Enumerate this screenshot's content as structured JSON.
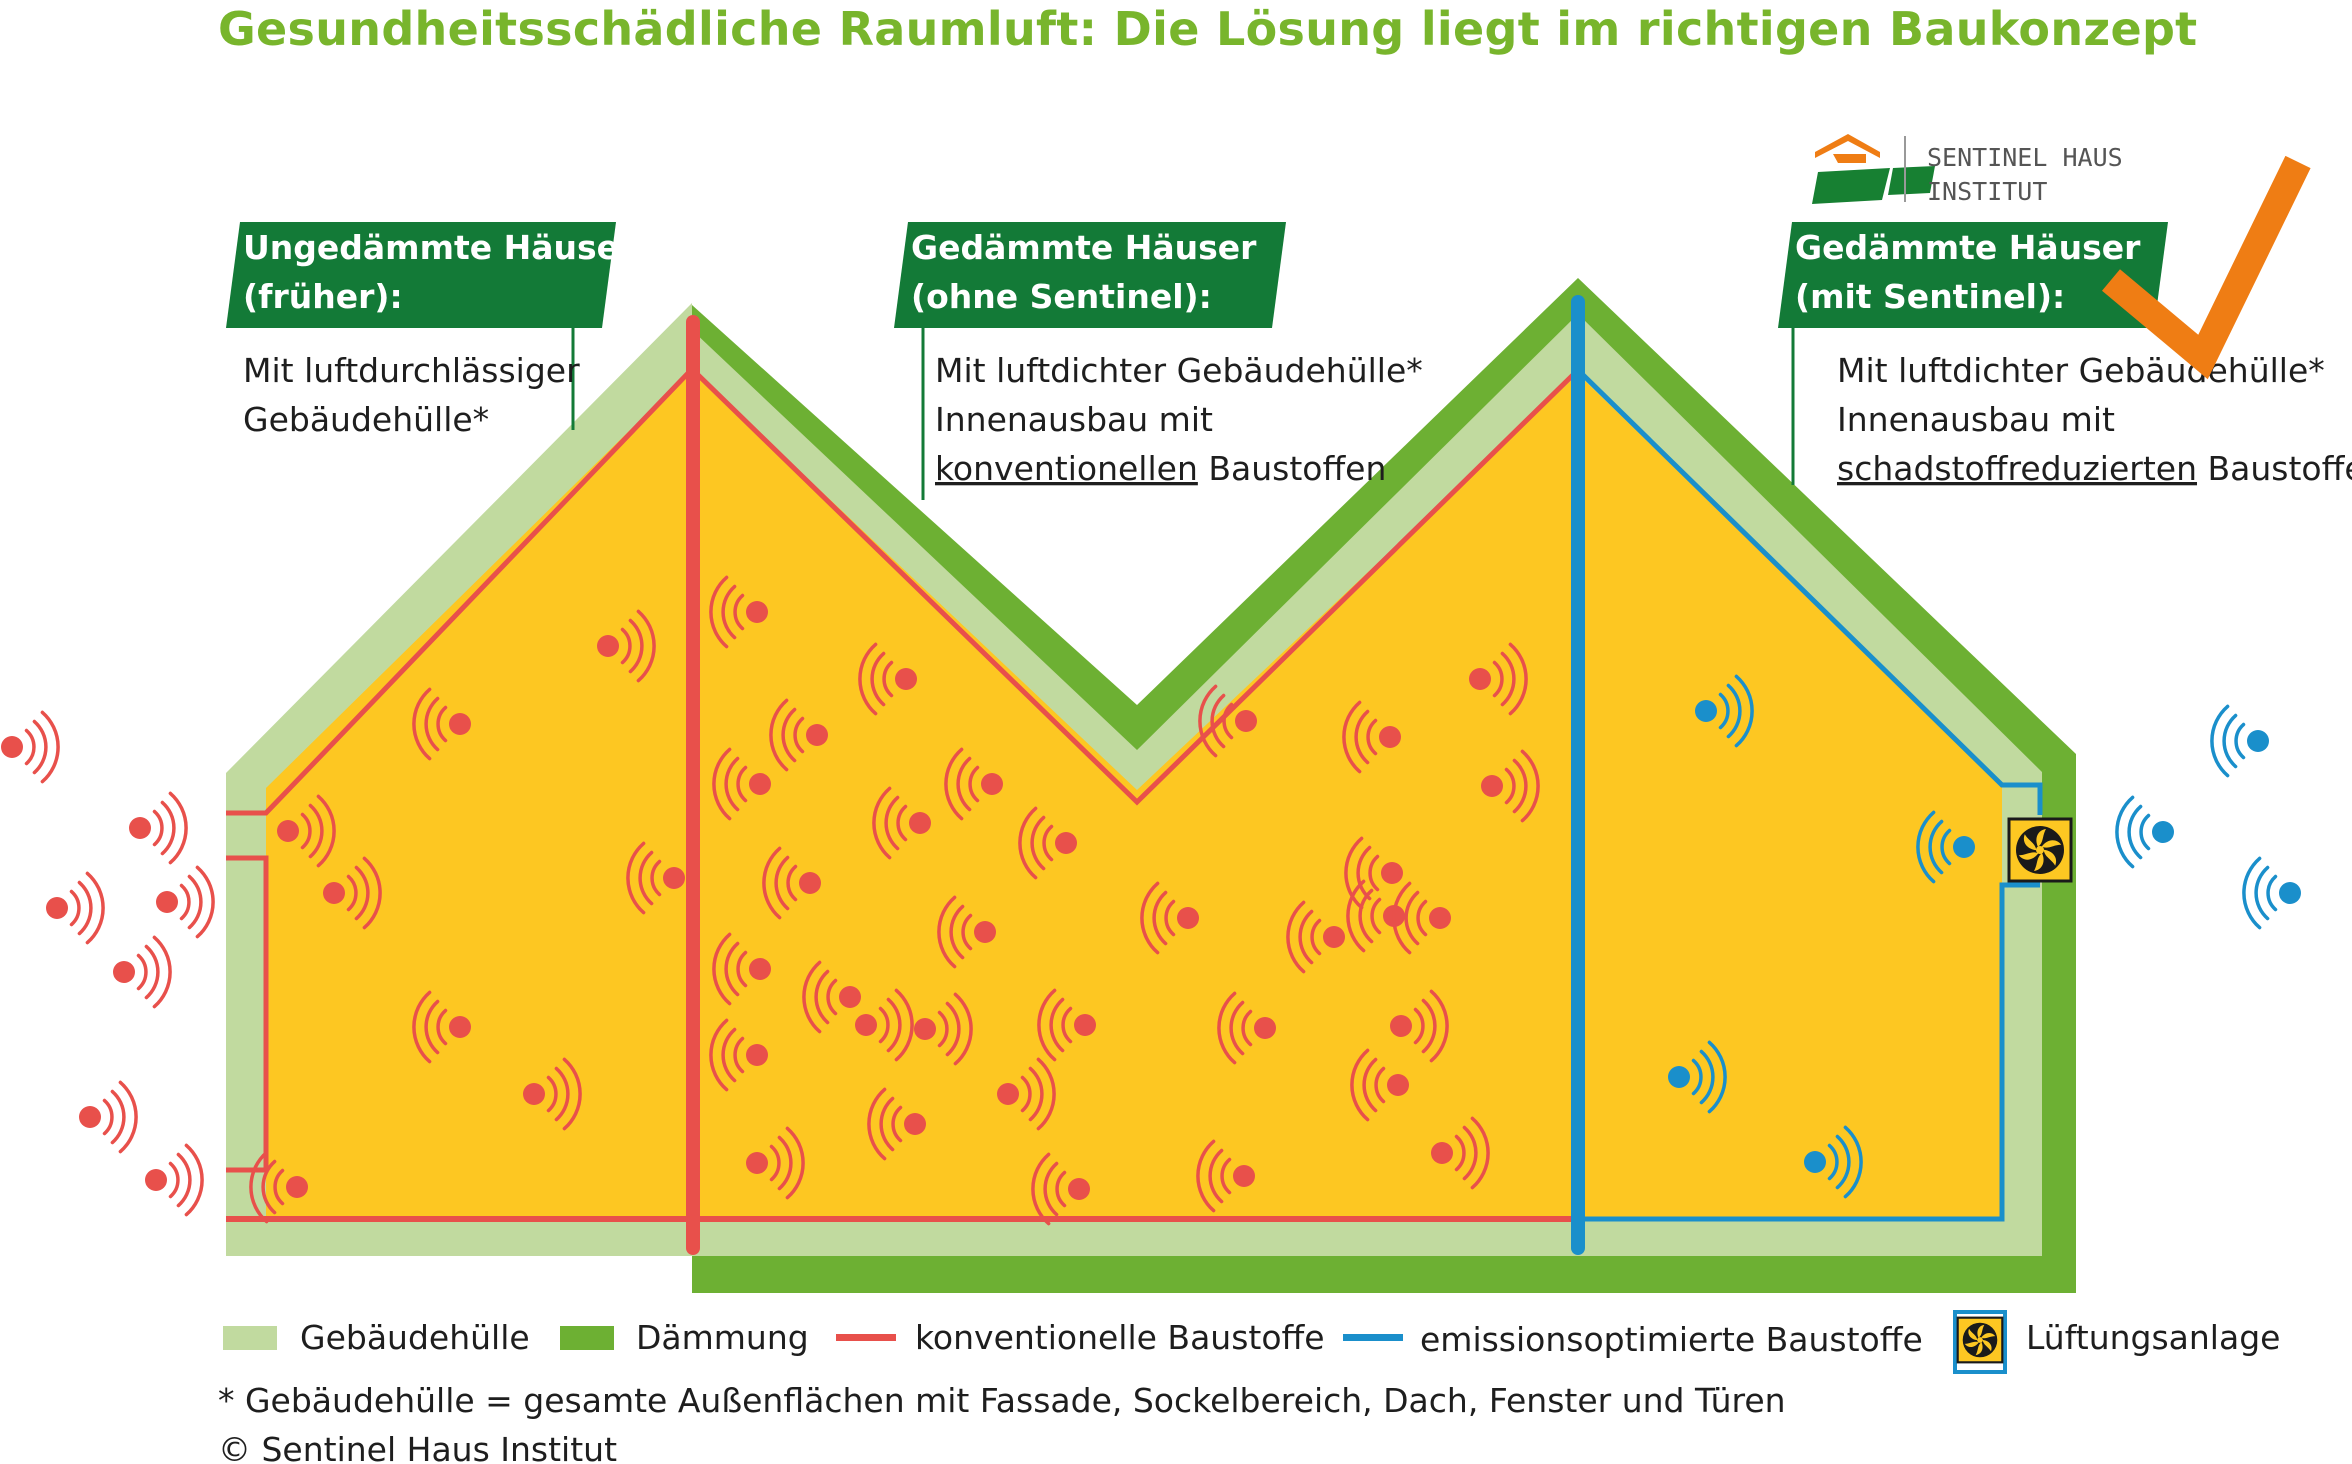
{
  "title": "Gesundheitsschädliche Raumluft: Die Lösung liegt im richtigen Baukonzept",
  "logo": {
    "line1": "SENTINEL HAUS",
    "line2": "INSTITUT"
  },
  "houses": [
    {
      "heading": [
        "Ungedämmte Häuser",
        "(früher):"
      ],
      "description": [
        [
          [
            "Mit luftdurchlässiger",
            false
          ]
        ],
        [
          [
            "Gebäudehülle*",
            false
          ]
        ]
      ]
    },
    {
      "heading": [
        "Gedämmte Häuser",
        "(ohne Sentinel):"
      ],
      "description": [
        [
          [
            "Mit luftdichter Gebäudehülle*",
            false
          ]
        ],
        [
          [
            "Innenausbau mit",
            false
          ]
        ],
        [
          [
            "konventionellen",
            true
          ],
          [
            " Baustoffen",
            false
          ]
        ]
      ]
    },
    {
      "heading": [
        "Gedämmte Häuser",
        "(mit Sentinel):"
      ],
      "description": [
        [
          [
            "Mit luftdichter Gebäudehülle*",
            false
          ]
        ],
        [
          [
            "Innenausbau mit",
            false
          ]
        ],
        [
          [
            "schadstoffreduzierten",
            true
          ],
          [
            " Baustoffen",
            false
          ]
        ]
      ]
    }
  ],
  "legend": {
    "envelope": "Gebäudehülle",
    "insulation": "Dämmung",
    "conventional": "konventionelle Baustoffe",
    "emission_optimized": "emissionsoptimierte Baustoffe",
    "ventilation": "Lüftungsanlage"
  },
  "footnote": "* Gebäudehülle = gesamte Außenflächen mit Fassade, Sockelbereich, Dach, Fenster und Türen",
  "copyright": "© Sentinel Haus Institut",
  "colors": {
    "title_green": "#78b52c",
    "label_green": "#137a37",
    "envelope": "#c1da9f",
    "insulation": "#6db033",
    "interior": "#fdc722",
    "conventional": "#e8504b",
    "emission_optimized": "#1a8fcb",
    "checkmark": "#ef7d14"
  },
  "icons": [
    "emission-wave-icon",
    "ventilation-fan-icon",
    "checkmark-icon",
    "sentinel-house-logo-icon"
  ]
}
